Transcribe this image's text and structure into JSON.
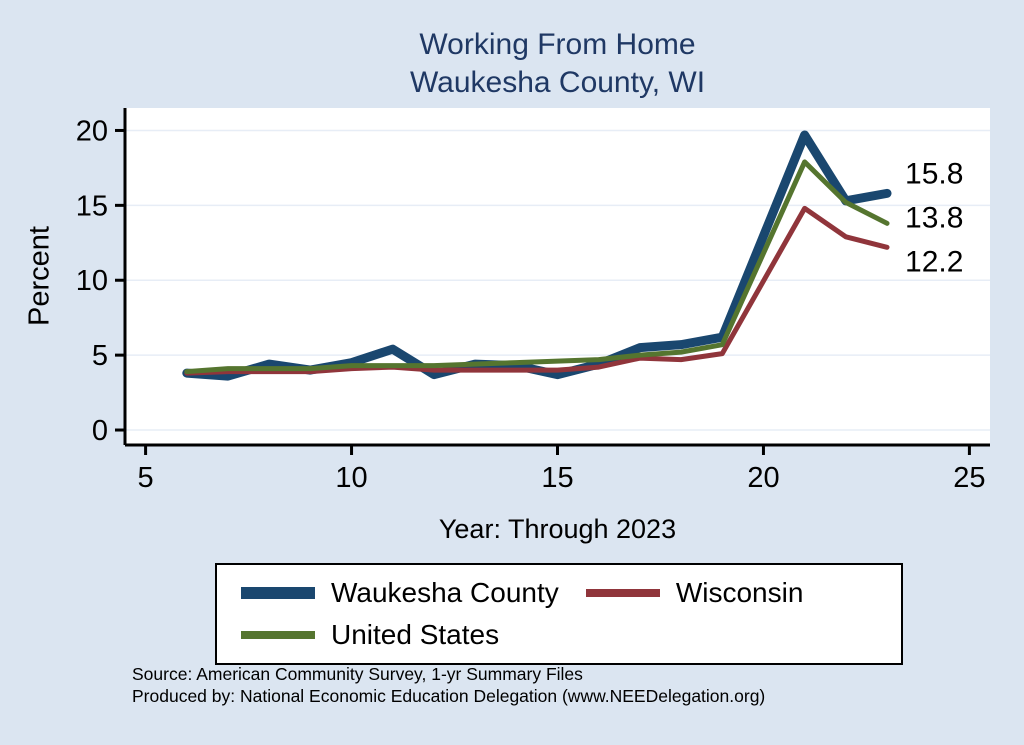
{
  "title": {
    "line1": "Working From Home",
    "line2": "Waukesha County, WI"
  },
  "axes": {
    "y_label": "Percent",
    "x_label": "Year: Through 2023"
  },
  "footer": {
    "line1": "Source: American Community Survey, 1-yr Summary Files",
    "line2": "Produced by: National Economic Education Delegation (www.NEEDelegation.org)"
  },
  "colors": {
    "background": "#dbe5f1",
    "plot_background": "#ffffff",
    "title": "#1f3864",
    "axis": "#000000",
    "waukesha": "#1a476f",
    "wisconsin": "#90353b",
    "united_states": "#55752f"
  },
  "chart_data": {
    "type": "line",
    "title": "Working From Home Waukesha County, WI",
    "xlabel": "Year: Through 2023",
    "ylabel": "Percent",
    "xlim": [
      4.5,
      25.5
    ],
    "ylim": [
      -1,
      21.5
    ],
    "x_ticks": [
      5,
      10,
      15,
      20,
      25
    ],
    "y_ticks": [
      0,
      5,
      10,
      15,
      20
    ],
    "grid": true,
    "legend_position": "bottom",
    "x": [
      6,
      7,
      8,
      9,
      10,
      11,
      12,
      13,
      14,
      15,
      16,
      17,
      18,
      19,
      21,
      22,
      23
    ],
    "series": [
      {
        "id": "waukesha-county",
        "name": "Waukesha County",
        "color": "#1a476f",
        "line_width": 9,
        "values": [
          3.8,
          3.6,
          4.4,
          4.0,
          4.5,
          5.4,
          3.7,
          4.4,
          4.3,
          3.7,
          4.4,
          5.5,
          5.7,
          6.2,
          19.7,
          15.3,
          15.8
        ],
        "end_label": "15.8",
        "end_label_dy": -20
      },
      {
        "id": "wisconsin",
        "name": "Wisconsin",
        "color": "#90353b",
        "line_width": 5,
        "values": [
          3.8,
          3.9,
          3.9,
          3.9,
          4.1,
          4.2,
          4.0,
          4.0,
          4.0,
          4.0,
          4.2,
          4.8,
          4.7,
          5.1,
          14.8,
          12.9,
          12.2
        ],
        "end_label": "12.2",
        "end_label_dy": 14
      },
      {
        "id": "united-states",
        "name": "United States",
        "color": "#55752f",
        "line_width": 5,
        "values": [
          3.9,
          4.1,
          4.1,
          4.1,
          4.3,
          4.3,
          4.3,
          4.4,
          4.5,
          4.6,
          4.7,
          5.0,
          5.2,
          5.7,
          17.9,
          15.2,
          13.8
        ],
        "end_label": "13.8",
        "end_label_dy": -6
      }
    ]
  }
}
